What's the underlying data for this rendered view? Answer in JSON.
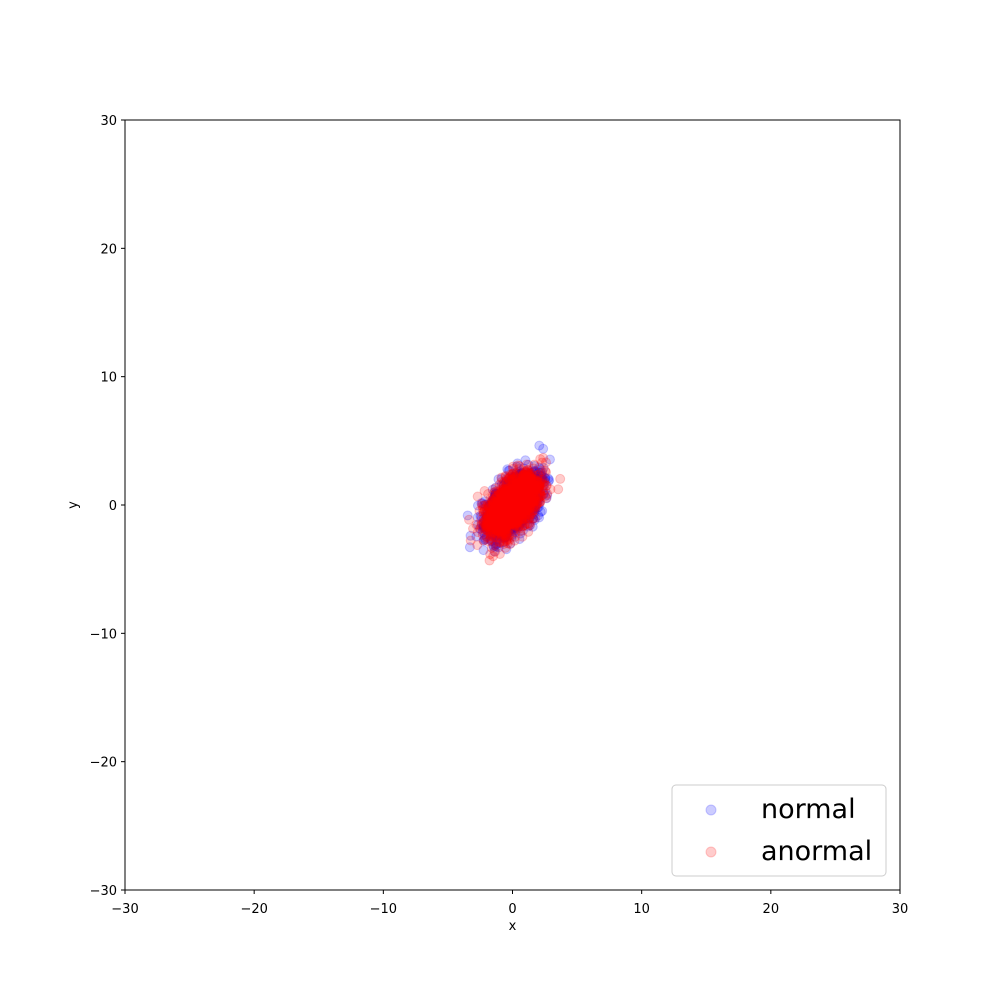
{
  "chart_data": {
    "type": "scatter",
    "title": "",
    "xlabel": "x",
    "ylabel": "y",
    "xlim": [
      -30,
      30
    ],
    "ylim": [
      -30,
      30
    ],
    "xticks": [
      -30,
      -20,
      -10,
      0,
      10,
      20,
      30
    ],
    "yticks": [
      -30,
      -20,
      -10,
      0,
      10,
      20,
      30
    ],
    "grid": false,
    "legend_position": "lower-right",
    "series": [
      {
        "name": "normal",
        "color": "#0000ff",
        "opacity": 0.2,
        "distribution": {
          "center": [
            0,
            0
          ],
          "sigma_x": 1.0,
          "sigma_y": 1.15,
          "correlation": 0.55,
          "count": 1800,
          "seed": 11
        }
      },
      {
        "name": "anormal",
        "color": "#ff0000",
        "opacity": 0.2,
        "distribution": {
          "center": [
            0,
            0
          ],
          "sigma_x": 1.0,
          "sigma_y": 1.15,
          "correlation": 0.55,
          "count": 1800,
          "seed": 29
        }
      }
    ]
  }
}
